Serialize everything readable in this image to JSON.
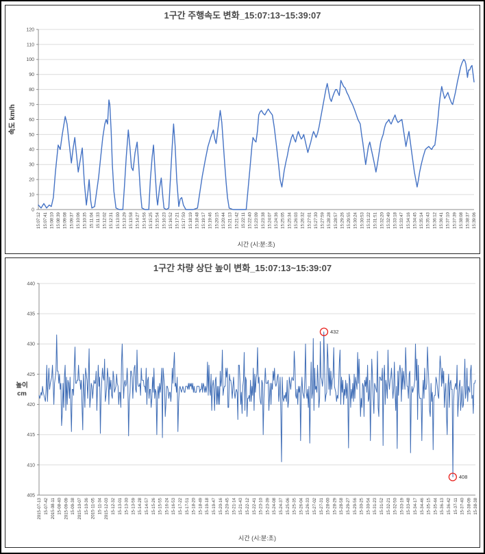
{
  "colors": {
    "line_blue_speed": "#4472C4",
    "line_blue_height": "#3E6CB5",
    "annotation_red": "#E8211D",
    "grid": "#DCDCDC",
    "axis": "#8C8C8C",
    "tick_text": "#4d4d4d",
    "title_text": "#4a4a4a"
  },
  "chart_data": [
    {
      "type": "line",
      "title": "1구간 주행속도 변화_15:07:13~15:39:07",
      "xlabel": "시간 (시:분:초)",
      "ylabel": "속도 km/h",
      "ylim": [
        0,
        120
      ],
      "y_ticks": [
        0,
        10,
        20,
        30,
        40,
        50,
        60,
        70,
        80,
        90,
        100,
        110,
        120
      ],
      "grid": true,
      "legend": "none",
      "line_color": "#4472C4",
      "x_span_seconds": 1914,
      "x_tick_labels": [
        "15:07:12",
        "15:07:41",
        "15:08:10",
        "15:08:39",
        "15:09:08",
        "15:09:37",
        "15:10:06",
        "15:10:35",
        "15:11:04",
        "15:11:33",
        "15:12:02",
        "15:12:31",
        "15:13:00",
        "15:13:29",
        "15:13:58",
        "15:14:27",
        "15:14:56",
        "15:15:25",
        "15:15:54",
        "15:16:23",
        "15:16:52",
        "15:17:21",
        "15:17:50",
        "15:18:19",
        "15:18:48",
        "15:19:17",
        "15:19:46",
        "15:20:15",
        "15:20:44",
        "15:21:13",
        "15:21:42",
        "15:22:11",
        "15:22:40",
        "15:23:09",
        "15:23:38",
        "15:24:07",
        "15:24:36",
        "15:25:05",
        "15:25:34",
        "15:26:03",
        "15:26:32",
        "15:27:01",
        "15:27:30",
        "15:27:59",
        "15:28:28",
        "15:28:57",
        "15:29:26",
        "15:29:55",
        "15:30:24",
        "15:30:53",
        "15:31:22",
        "15:31:51",
        "15:32:20",
        "15:32:49",
        "15:33:18",
        "15:33:47",
        "15:34:16",
        "15:34:45",
        "15:35:14",
        "15:35:43",
        "15:36:12",
        "15:36:41",
        "15:37:10",
        "15:37:39",
        "15:38:08",
        "15:38:37",
        "15:39:06"
      ],
      "points": [
        [
          0,
          3
        ],
        [
          12,
          1
        ],
        [
          24,
          4
        ],
        [
          36,
          1
        ],
        [
          48,
          3
        ],
        [
          57,
          2
        ],
        [
          66,
          8
        ],
        [
          75,
          25
        ],
        [
          87,
          43
        ],
        [
          96,
          40
        ],
        [
          105,
          50
        ],
        [
          118,
          62
        ],
        [
          126,
          57
        ],
        [
          134,
          46
        ],
        [
          145,
          31
        ],
        [
          152,
          40
        ],
        [
          160,
          48
        ],
        [
          168,
          36
        ],
        [
          175,
          25
        ],
        [
          184,
          33
        ],
        [
          193,
          41
        ],
        [
          202,
          18
        ],
        [
          211,
          3
        ],
        [
          218,
          12
        ],
        [
          223,
          20
        ],
        [
          230,
          6
        ],
        [
          235,
          1
        ],
        [
          247,
          2
        ],
        [
          256,
          12
        ],
        [
          265,
          22
        ],
        [
          274,
          35
        ],
        [
          283,
          48
        ],
        [
          292,
          57
        ],
        [
          298,
          60
        ],
        [
          304,
          57
        ],
        [
          310,
          73
        ],
        [
          314,
          70
        ],
        [
          320,
          52
        ],
        [
          325,
          30
        ],
        [
          332,
          12
        ],
        [
          341,
          1
        ],
        [
          355,
          0
        ],
        [
          371,
          0
        ],
        [
          378,
          15
        ],
        [
          386,
          35
        ],
        [
          395,
          53
        ],
        [
          402,
          42
        ],
        [
          409,
          28
        ],
        [
          416,
          26
        ],
        [
          425,
          38
        ],
        [
          434,
          45
        ],
        [
          441,
          30
        ],
        [
          448,
          12
        ],
        [
          455,
          1
        ],
        [
          468,
          0
        ],
        [
          485,
          0
        ],
        [
          492,
          20
        ],
        [
          500,
          35
        ],
        [
          506,
          43
        ],
        [
          514,
          22
        ],
        [
          520,
          8
        ],
        [
          524,
          3
        ],
        [
          532,
          14
        ],
        [
          540,
          21
        ],
        [
          547,
          8
        ],
        [
          552,
          1
        ],
        [
          562,
          0
        ],
        [
          573,
          1
        ],
        [
          580,
          20
        ],
        [
          587,
          40
        ],
        [
          594,
          57
        ],
        [
          601,
          42
        ],
        [
          608,
          20
        ],
        [
          617,
          2
        ],
        [
          623,
          7
        ],
        [
          630,
          8
        ],
        [
          637,
          3
        ],
        [
          648,
          0
        ],
        [
          665,
          0
        ],
        [
          680,
          0
        ],
        [
          699,
          1
        ],
        [
          710,
          12
        ],
        [
          720,
          22
        ],
        [
          733,
          33
        ],
        [
          745,
          42
        ],
        [
          757,
          48
        ],
        [
          769,
          53
        ],
        [
          775,
          47
        ],
        [
          781,
          44
        ],
        [
          790,
          55
        ],
        [
          799,
          66
        ],
        [
          806,
          58
        ],
        [
          812,
          45
        ],
        [
          819,
          30
        ],
        [
          825,
          18
        ],
        [
          831,
          8
        ],
        [
          838,
          1
        ],
        [
          855,
          0
        ],
        [
          880,
          0
        ],
        [
          913,
          0
        ],
        [
          922,
          15
        ],
        [
          930,
          28
        ],
        [
          938,
          42
        ],
        [
          943,
          48
        ],
        [
          950,
          46
        ],
        [
          956,
          45
        ],
        [
          962,
          52
        ],
        [
          968,
          63
        ],
        [
          974,
          65
        ],
        [
          980,
          66
        ],
        [
          988,
          64
        ],
        [
          995,
          63
        ],
        [
          1002,
          65
        ],
        [
          1010,
          67
        ],
        [
          1018,
          65
        ],
        [
          1028,
          63
        ],
        [
          1036,
          55
        ],
        [
          1045,
          44
        ],
        [
          1054,
          32
        ],
        [
          1062,
          20
        ],
        [
          1070,
          15
        ],
        [
          1080,
          26
        ],
        [
          1088,
          32
        ],
        [
          1094,
          36
        ],
        [
          1100,
          41
        ],
        [
          1105,
          44
        ],
        [
          1112,
          48
        ],
        [
          1118,
          50
        ],
        [
          1124,
          47
        ],
        [
          1130,
          45
        ],
        [
          1136,
          49
        ],
        [
          1142,
          52
        ],
        [
          1149,
          49
        ],
        [
          1155,
          47
        ],
        [
          1160,
          48
        ],
        [
          1166,
          50
        ],
        [
          1175,
          44
        ],
        [
          1184,
          38
        ],
        [
          1191,
          42
        ],
        [
          1197,
          45
        ],
        [
          1203,
          49
        ],
        [
          1209,
          52
        ],
        [
          1215,
          50
        ],
        [
          1220,
          48
        ],
        [
          1227,
          51
        ],
        [
          1233,
          55
        ],
        [
          1239,
          60
        ],
        [
          1245,
          65
        ],
        [
          1251,
          70
        ],
        [
          1257,
          75
        ],
        [
          1263,
          80
        ],
        [
          1269,
          84
        ],
        [
          1275,
          79
        ],
        [
          1281,
          74
        ],
        [
          1287,
          72
        ],
        [
          1293,
          75
        ],
        [
          1300,
          78
        ],
        [
          1306,
          80
        ],
        [
          1311,
          80
        ],
        [
          1316,
          78
        ],
        [
          1322,
          76
        ],
        [
          1329,
          86
        ],
        [
          1335,
          84
        ],
        [
          1341,
          82
        ],
        [
          1348,
          81
        ],
        [
          1355,
          78
        ],
        [
          1362,
          76
        ],
        [
          1370,
          73
        ],
        [
          1380,
          70
        ],
        [
          1388,
          67
        ],
        [
          1395,
          64
        ],
        [
          1404,
          60
        ],
        [
          1414,
          57
        ],
        [
          1420,
          50
        ],
        [
          1425,
          45
        ],
        [
          1431,
          38
        ],
        [
          1438,
          30
        ],
        [
          1444,
          36
        ],
        [
          1450,
          42
        ],
        [
          1456,
          45
        ],
        [
          1463,
          40
        ],
        [
          1470,
          35
        ],
        [
          1477,
          30
        ],
        [
          1483,
          25
        ],
        [
          1489,
          30
        ],
        [
          1495,
          36
        ],
        [
          1504,
          45
        ],
        [
          1510,
          48
        ],
        [
          1515,
          50
        ],
        [
          1519,
          53
        ],
        [
          1522,
          55
        ],
        [
          1526,
          57
        ],
        [
          1530,
          58
        ],
        [
          1536,
          59
        ],
        [
          1540,
          60
        ],
        [
          1545,
          58
        ],
        [
          1550,
          57
        ],
        [
          1558,
          60
        ],
        [
          1567,
          63
        ],
        [
          1573,
          60
        ],
        [
          1580,
          58
        ],
        [
          1588,
          59
        ],
        [
          1597,
          60
        ],
        [
          1605,
          52
        ],
        [
          1615,
          42
        ],
        [
          1621,
          47
        ],
        [
          1628,
          52
        ],
        [
          1635,
          44
        ],
        [
          1643,
          35
        ],
        [
          1652,
          25
        ],
        [
          1664,
          15
        ],
        [
          1670,
          20
        ],
        [
          1675,
          25
        ],
        [
          1682,
          30
        ],
        [
          1690,
          35
        ],
        [
          1700,
          40
        ],
        [
          1707,
          41
        ],
        [
          1715,
          42
        ],
        [
          1721,
          41
        ],
        [
          1728,
          40
        ],
        [
          1735,
          42
        ],
        [
          1742,
          43
        ],
        [
          1748,
          50
        ],
        [
          1755,
          60
        ],
        [
          1760,
          68
        ],
        [
          1765,
          75
        ],
        [
          1772,
          82
        ],
        [
          1778,
          78
        ],
        [
          1785,
          74
        ],
        [
          1792,
          76
        ],
        [
          1799,
          78
        ],
        [
          1805,
          75
        ],
        [
          1810,
          73
        ],
        [
          1815,
          71
        ],
        [
          1820,
          70
        ],
        [
          1826,
          74
        ],
        [
          1832,
          78
        ],
        [
          1841,
          85
        ],
        [
          1848,
          90
        ],
        [
          1855,
          95
        ],
        [
          1862,
          98
        ],
        [
          1869,
          100
        ],
        [
          1874,
          99
        ],
        [
          1878,
          97
        ],
        [
          1882,
          92
        ],
        [
          1885,
          88
        ],
        [
          1890,
          93
        ],
        [
          1895,
          93
        ],
        [
          1900,
          95
        ],
        [
          1905,
          96
        ],
        [
          1910,
          90
        ],
        [
          1914,
          85
        ]
      ]
    },
    {
      "type": "line",
      "title": "1구간 차량 상단 높이 변화_15:07:13~15:39:07",
      "xlabel": "시간 (시:분:초)",
      "ylabel_lines": [
        "높이",
        "cm"
      ],
      "ylim": [
        405,
        440
      ],
      "y_ticks": [
        405,
        410,
        415,
        420,
        425,
        430,
        435,
        440
      ],
      "grid": true,
      "legend": "none",
      "line_color": "#3E6CB5",
      "x_tick_labels": [
        "2015-07-13",
        "15-07-42",
        "2015-08-11",
        "15-08-40",
        "2015-09-09",
        "15-09-38",
        "2015-10-07",
        "15-10-36",
        "2015-11-05",
        "15-11-34",
        "2015-12-03",
        "15-12-32",
        "15-13-01",
        "15-13-30",
        "15-13-59",
        "15-14-28",
        "15-14-57",
        "15-15-26",
        "15-15-55",
        "15-16-24",
        "15-16-53",
        "15-17-22",
        "15-17-51",
        "15-18-20",
        "15-18-49",
        "15-19-18",
        "15-19-47",
        "15-20-16",
        "15-20-45",
        "15-21-14",
        "15-21-43",
        "15-22-12",
        "15-22-41",
        "15-23-10",
        "15-23-39",
        "15-24-08",
        "15-24-37",
        "15-25-06",
        "15-25-35",
        "15-26-04",
        "15-26-33",
        "15-27-02",
        "15-27-31",
        "15-28-00",
        "15-28-29",
        "15-28-58",
        "15-29-27",
        "15-29-56",
        "15-30-25",
        "15-30-54",
        "15-31-23",
        "15-31-52",
        "15-32-21",
        "15-32-50",
        "15-33-19",
        "15-33-48",
        "15-34-17",
        "15-34-46",
        "15-35-15",
        "15-35-44",
        "15-36-13",
        "15-36-42",
        "15-37-11",
        "15-37-40",
        "15-38-09",
        "15-38-38"
      ],
      "noise": {
        "baseline": 422.7,
        "typical_min": 420,
        "typical_max": 427,
        "n_points": 620,
        "seed": 11,
        "quiet_zones": [
          [
            0.32,
            0.385
          ]
        ],
        "spikes": [
          [
            0.04,
            431.5
          ],
          [
            0.052,
            416.5
          ],
          [
            0.075,
            415.5
          ],
          [
            0.082,
            429.5
          ],
          [
            0.1,
            415.8
          ],
          [
            0.115,
            429.2
          ],
          [
            0.14,
            415.2
          ],
          [
            0.19,
            430.0
          ],
          [
            0.205,
            414.8
          ],
          [
            0.225,
            429.0
          ],
          [
            0.27,
            415.0
          ],
          [
            0.283,
            414.5
          ],
          [
            0.31,
            428.6
          ],
          [
            0.318,
            415.5
          ],
          [
            0.42,
            429.0
          ],
          [
            0.455,
            417.5
          ],
          [
            0.47,
            428.6
          ],
          [
            0.5,
            429.4
          ],
          [
            0.513,
            415.0
          ],
          [
            0.556,
            410.5
          ],
          [
            0.585,
            428.8
          ],
          [
            0.6,
            414.0
          ],
          [
            0.61,
            430.0
          ],
          [
            0.62,
            413.6
          ],
          [
            0.628,
            430.9
          ],
          [
            0.645,
            430.4
          ],
          [
            0.653,
            432.0
          ],
          [
            0.66,
            430.0
          ],
          [
            0.675,
            429.4
          ],
          [
            0.69,
            429.0
          ],
          [
            0.71,
            412.8
          ],
          [
            0.73,
            428.6
          ],
          [
            0.76,
            414.0
          ],
          [
            0.775,
            428.8
          ],
          [
            0.788,
            413.2
          ],
          [
            0.8,
            429.0
          ],
          [
            0.82,
            412.7
          ],
          [
            0.84,
            429.4
          ],
          [
            0.852,
            412.0
          ],
          [
            0.863,
            430.0
          ],
          [
            0.878,
            414.0
          ],
          [
            0.89,
            429.5
          ],
          [
            0.903,
            412.5
          ],
          [
            0.92,
            428.0
          ],
          [
            0.935,
            415.0
          ],
          [
            0.948,
            408.0
          ],
          [
            0.96,
            418.0
          ],
          [
            0.975,
            427.5
          ],
          [
            0.99,
            426.5
          ]
        ]
      },
      "annotations": [
        {
          "text": "432",
          "pos": 0.653,
          "value": 432
        },
        {
          "text": "408",
          "pos": 0.948,
          "value": 408
        }
      ],
      "annotation_color": "#E8211D"
    }
  ]
}
